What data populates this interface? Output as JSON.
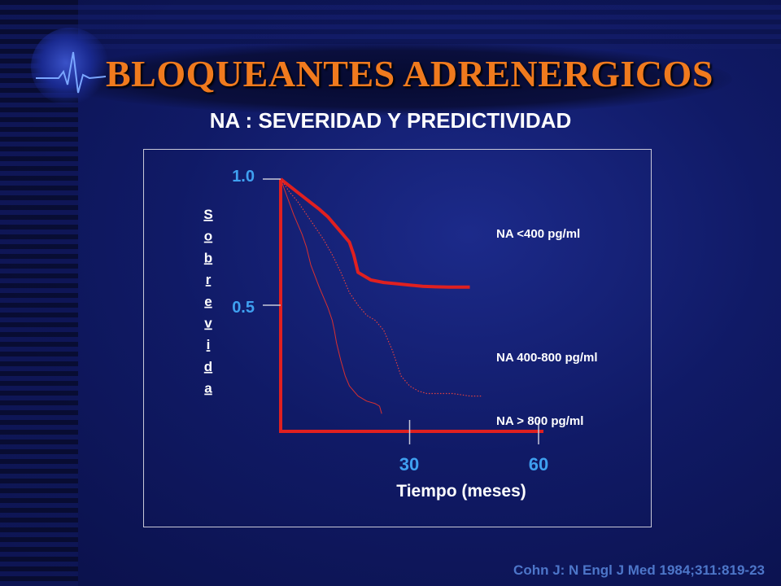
{
  "slide": {
    "title": "BLOQUEANTES ADRENERGICOS",
    "subtitle": "NA : SEVERIDAD Y PREDICTIVIDAD",
    "citation": "Cohn J: N Engl J Med 1984;311:819-23"
  },
  "colors": {
    "title": "#f07a1e",
    "axis": "#e02020",
    "tick_label": "#3fa0f0",
    "background": "#101a66"
  },
  "chart_data": {
    "type": "line",
    "title": "",
    "xlabel": "Tiempo (meses)",
    "ylabel": "Sobrevida",
    "xlim": [
      0,
      60
    ],
    "ylim": [
      0,
      1.0
    ],
    "x_ticks": [
      "30",
      "60"
    ],
    "y_ticks": [
      "1.0",
      "0.5"
    ],
    "legend_placement": "right",
    "series": [
      {
        "name": "NA <400 pg/ml",
        "style": "thick",
        "x": [
          0,
          3,
          6,
          9,
          11,
          12,
          14,
          16,
          17,
          18,
          21,
          24,
          27,
          30,
          33,
          36,
          39,
          42,
          44
        ],
        "y": [
          1.0,
          0.96,
          0.92,
          0.88,
          0.85,
          0.83,
          0.79,
          0.75,
          0.7,
          0.63,
          0.6,
          0.59,
          0.585,
          0.58,
          0.575,
          0.573,
          0.572,
          0.572,
          0.572
        ]
      },
      {
        "name": "NA 400-800 pg/ml",
        "style": "dotted",
        "x": [
          0,
          2,
          4,
          6,
          8,
          10,
          12,
          14,
          16,
          18,
          20,
          22,
          24,
          26,
          28,
          30,
          32,
          34,
          36,
          40,
          44,
          47
        ],
        "y": [
          1.0,
          0.95,
          0.91,
          0.86,
          0.81,
          0.76,
          0.7,
          0.63,
          0.55,
          0.5,
          0.46,
          0.44,
          0.4,
          0.32,
          0.22,
          0.18,
          0.16,
          0.15,
          0.15,
          0.15,
          0.14,
          0.14
        ]
      },
      {
        "name": "NA > 800 pg/ml",
        "style": "thin",
        "x": [
          0,
          1.5,
          3,
          5,
          6,
          7,
          9,
          11,
          12,
          12.5,
          13,
          14,
          15,
          16,
          18,
          20,
          22,
          23,
          23.5
        ],
        "y": [
          1.0,
          0.93,
          0.86,
          0.78,
          0.73,
          0.66,
          0.57,
          0.49,
          0.44,
          0.4,
          0.35,
          0.28,
          0.22,
          0.18,
          0.14,
          0.12,
          0.11,
          0.1,
          0.07
        ]
      }
    ]
  }
}
